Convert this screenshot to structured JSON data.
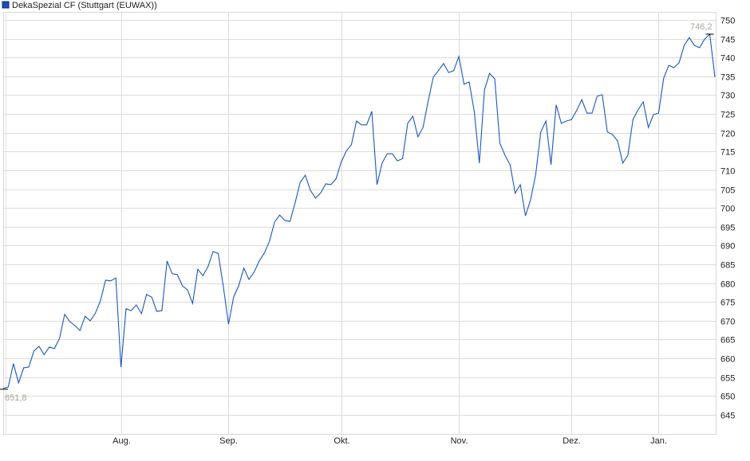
{
  "chart_data": {
    "type": "line",
    "legend": {
      "label": "DekaSpezial CF (Stuttgart (EUWAX))",
      "placement": "top-left",
      "color": "#1a4fb5"
    },
    "line_color": "#1a56c4",
    "grid": true,
    "ylim": [
      639.7,
      751.9
    ],
    "y_ticks": [
      645,
      650,
      655,
      660,
      665,
      670,
      675,
      680,
      685,
      690,
      695,
      700,
      705,
      710,
      715,
      720,
      725,
      730,
      735,
      740,
      745,
      750
    ],
    "y_axis_side": "right",
    "x_ticks": [
      {
        "label": "Aug.",
        "index": 23
      },
      {
        "label": "Sep.",
        "index": 44
      },
      {
        "label": "Okt.",
        "index": 66
      },
      {
        "label": "Nov.",
        "index": 89
      },
      {
        "label": "Dez.",
        "index": 111
      },
      {
        "label": "Jan.",
        "index": 128
      }
    ],
    "annotations": {
      "min": {
        "label": "651,8",
        "value": 651.8,
        "index": 0
      },
      "max": {
        "label": "746,2",
        "value": 746.2,
        "index": 138
      }
    },
    "values": [
      652,
      652.4,
      658.6,
      653.5,
      657.5,
      657.7,
      662,
      663.2,
      661,
      663,
      662.6,
      665.3,
      671.7,
      669.8,
      668.7,
      667.4,
      671.2,
      670,
      672,
      675.3,
      680.8,
      680.6,
      681.4,
      657.7,
      673.2,
      672.7,
      674.2,
      671.9,
      677,
      676.3,
      672.5,
      672.7,
      685.9,
      682.5,
      682.3,
      679.3,
      678.2,
      674.6,
      683.7,
      682,
      684.4,
      688.4,
      687.9,
      679.1,
      669.1,
      676.3,
      679.3,
      684,
      681,
      682.9,
      685.9,
      688,
      691.1,
      696.2,
      698.1,
      696.7,
      696.4,
      701.3,
      706.8,
      708.7,
      704.7,
      702.6,
      704,
      706.4,
      706.2,
      707.7,
      712.1,
      715.1,
      716.8,
      723.1,
      722.1,
      722.1,
      725.7,
      706.2,
      711.9,
      714.4,
      714.4,
      712.5,
      713.1,
      722.5,
      724.4,
      718.9,
      721.4,
      728.4,
      734.8,
      736.5,
      738.4,
      736,
      736.5,
      740.3,
      732.9,
      733.5,
      725.7,
      711.9,
      731.4,
      735.8,
      734.3,
      717.2,
      714,
      711.5,
      703.9,
      706.2,
      697.9,
      702.2,
      708.9,
      720.2,
      723.1,
      711.5,
      727.4,
      722.5,
      723.1,
      723.5,
      725.9,
      728.8,
      725.2,
      725.2,
      729.7,
      730.1,
      720.2,
      719.5,
      717.8,
      711.9,
      714,
      723.5,
      726.1,
      728.2,
      721.4,
      724.8,
      725.2,
      734.5,
      737.9,
      737.3,
      738.6,
      743.2,
      745.3,
      743.2,
      742.6,
      744.9,
      746.2,
      734.8
    ]
  }
}
